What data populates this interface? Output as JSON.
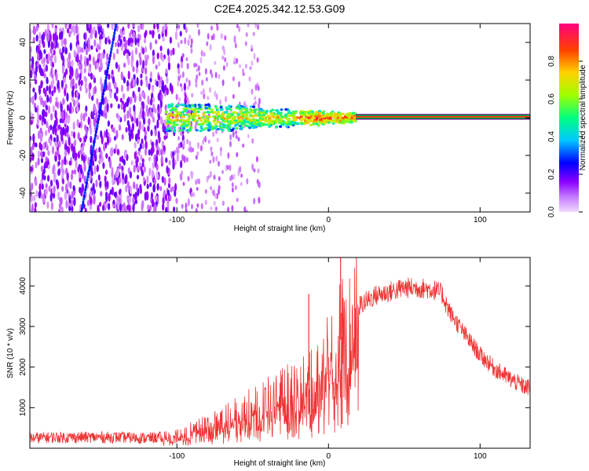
{
  "title": "C2E4.2025.342.12.53.G09",
  "chart_data": [
    {
      "type": "heatmap",
      "title": "C2E4.2025.342.12.53.G09",
      "xlabel": "Height of straight line (km)",
      "ylabel": "Frequency (Hz)",
      "xlim": [
        -197,
        133
      ],
      "ylim": [
        -50,
        50
      ],
      "x_ticks": [
        -100,
        0,
        100
      ],
      "y_ticks": [
        -40,
        -20,
        0,
        20,
        40
      ],
      "colorbar": {
        "label": "Normalized spectral amplitude",
        "range": [
          0,
          1
        ],
        "ticks": [
          0.0,
          0.2,
          0.4,
          0.6,
          0.8
        ],
        "colormap": [
          "#f2d9ff",
          "#a000ff",
          "#0000ff",
          "#00c8ff",
          "#00ff80",
          "#a0ff00",
          "#ffd000",
          "#ff4000",
          "#ff0080"
        ]
      },
      "features": [
        {
          "name": "carrier line",
          "x_start": 18,
          "x_end": 133,
          "freq": 0.5,
          "amplitude": 0.95
        },
        {
          "name": "spectral spread",
          "x_start": -107,
          "x_end": 18,
          "freq_center": 0,
          "half_width": 8
        },
        {
          "name": "noise region",
          "x_start": -197,
          "x_end": -100,
          "freq_range": [
            -50,
            50
          ]
        },
        {
          "name": "drifting tone",
          "points": [
            [
              -163,
              -50
            ],
            [
              -140,
              50
            ]
          ]
        }
      ]
    },
    {
      "type": "line",
      "xlabel": "Height of straight line (km)",
      "ylabel": "SNR (10 * v/v)",
      "xlim": [
        -197,
        133
      ],
      "ylim": [
        0,
        4700
      ],
      "x_ticks": [
        -100,
        0,
        100
      ],
      "y_ticks": [
        1000,
        2000,
        3000,
        4000
      ],
      "series": [
        {
          "name": "SNR",
          "color": "#ee3333",
          "x": [
            -197,
            -180,
            -160,
            -140,
            -120,
            -110,
            -100,
            -90,
            -80,
            -70,
            -60,
            -50,
            -40,
            -30,
            -20,
            -10,
            0,
            10,
            20,
            30,
            40,
            50,
            60,
            70,
            75,
            80,
            90,
            100,
            110,
            120,
            130
          ],
          "y": [
            250,
            270,
            270,
            270,
            250,
            270,
            330,
            430,
            560,
            680,
            830,
            980,
            1130,
            1300,
            1500,
            1750,
            2200,
            2800,
            3500,
            3750,
            3850,
            3950,
            3950,
            3900,
            3800,
            3350,
            2800,
            2300,
            1950,
            1700,
            1500
          ]
        }
      ],
      "annotations": [
        {
          "x": -13,
          "y": 3800,
          "note": "spike"
        },
        {
          "x": 8,
          "y": 4700,
          "note": "spike"
        },
        {
          "x": 9,
          "y": 600,
          "note": "dip"
        }
      ]
    }
  ]
}
